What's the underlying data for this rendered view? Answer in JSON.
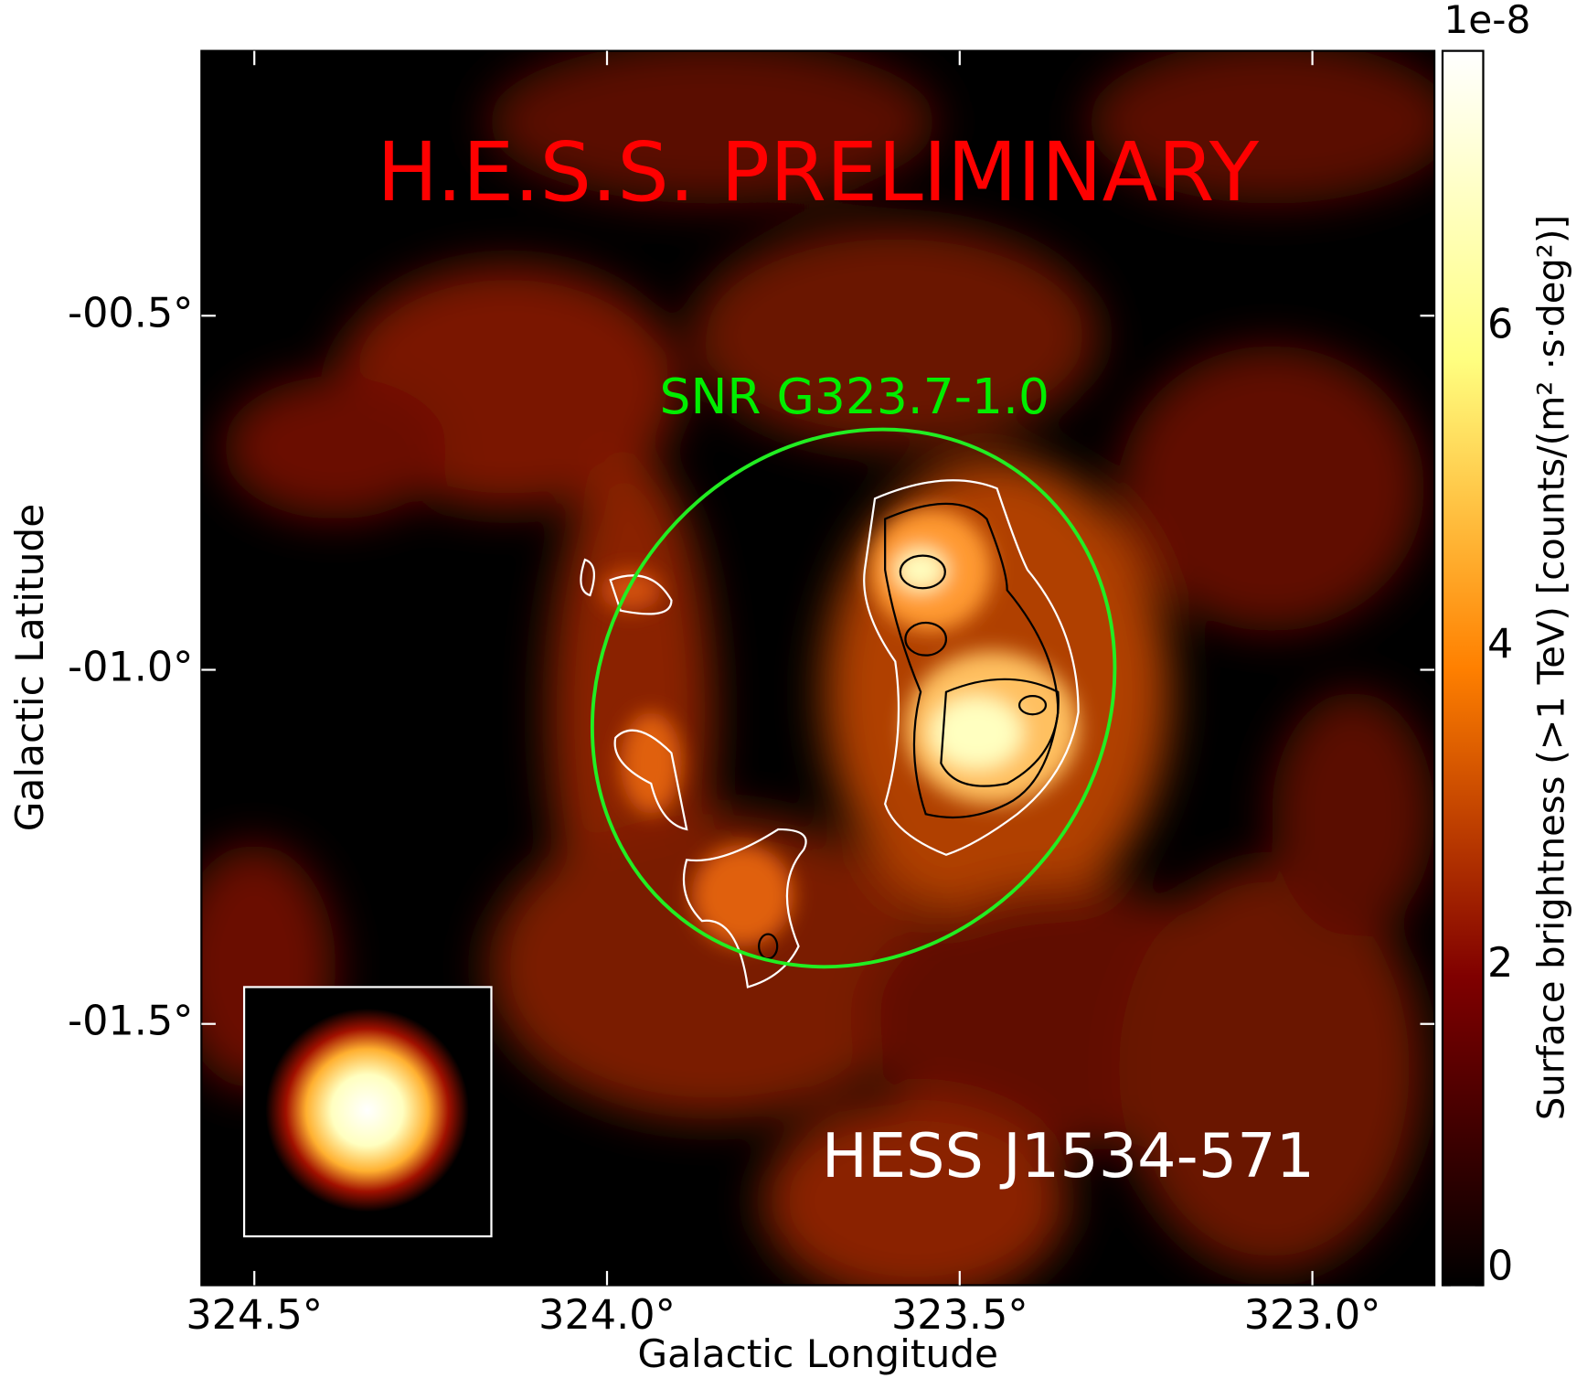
{
  "chart_data": {
    "type": "image",
    "x_label": "Galactic Longitude",
    "y_label": "Galactic Latitude",
    "xlim": [
      324.575,
      322.827
    ],
    "ylim": [
      -1.869,
      -0.126
    ],
    "xticks": [
      {
        "value": 324.5,
        "label": "324.5°"
      },
      {
        "value": 324.0,
        "label": "324.0°"
      },
      {
        "value": 323.5,
        "label": "323.5°"
      },
      {
        "value": 323.0,
        "label": "323.0°"
      }
    ],
    "yticks": [
      {
        "value": -0.5,
        "label": "-00.5°"
      },
      {
        "value": -1.0,
        "label": "-01.0°"
      },
      {
        "value": -1.5,
        "label": "-01.5°"
      }
    ],
    "colorbar": {
      "label": "Surface brightness (>1 TeV) [counts/(m² ·s·deg²)]",
      "offset_label": "1e-8",
      "lim": [
        0,
        7.73
      ],
      "ticks": [
        0,
        2,
        4,
        6
      ],
      "colormap": "afmhot"
    },
    "annotations": [
      {
        "text": "H.E.S.S. PRELIMINARY",
        "color": "#ff0000"
      },
      {
        "text": "SNR G323.7-1.0",
        "color": "#00ee00"
      },
      {
        "text": "HESS J1534-571",
        "color": "#ffffff"
      }
    ]
  }
}
